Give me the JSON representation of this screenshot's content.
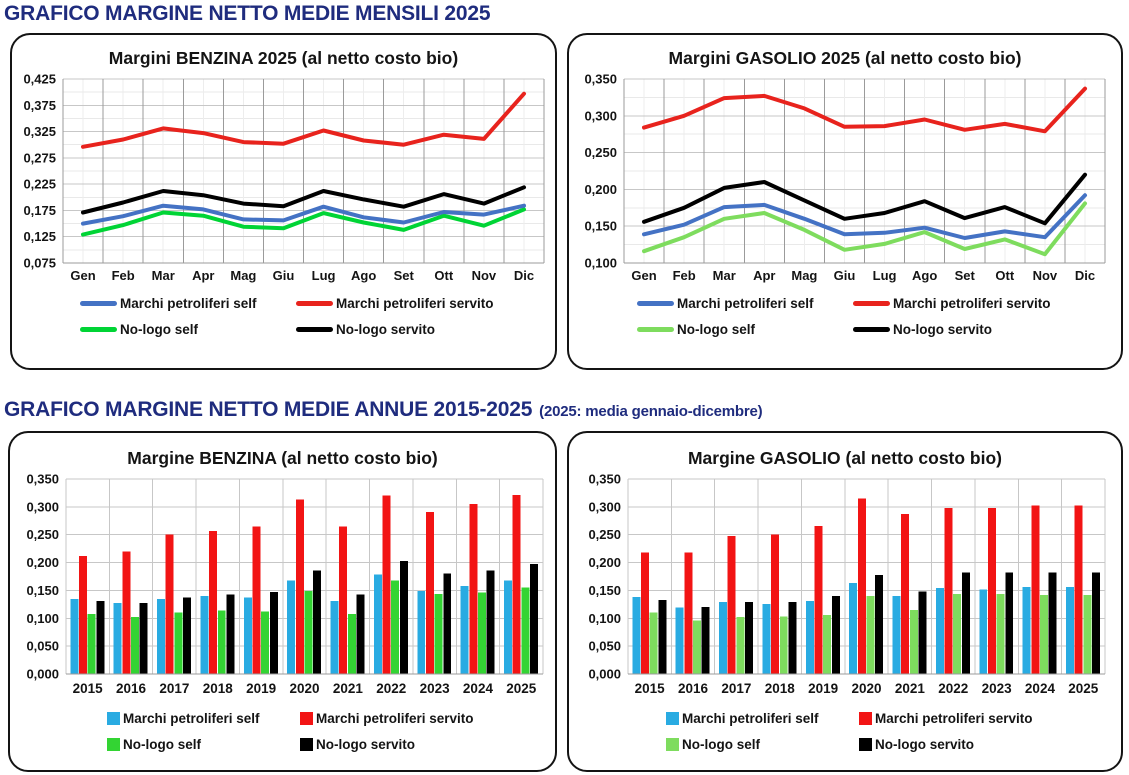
{
  "accent_color": "#1F2C7E",
  "headers": {
    "monthly": "GRAFICO MARGINE NETTO MEDIE MENSILI 2025",
    "annual": "GRAFICO MARGINE NETTO MEDIE ANNUE 2015-2025",
    "annual_note": "(2025: media gennaio-dicembre)"
  },
  "legend_labels": [
    "Marchi petroliferi self",
    "Marchi petroliferi servito",
    "No-logo self",
    "No-logo servito"
  ],
  "chart_data": [
    {
      "type": "line",
      "title": "Margini BENZINA 2025 (al netto costo bio)",
      "categories": [
        "Gen",
        "Feb",
        "Mar",
        "Apr",
        "Mag",
        "Giu",
        "Lug",
        "Ago",
        "Set",
        "Ott",
        "Nov",
        "Dic"
      ],
      "xlabel": "",
      "ylabel": "",
      "ylim": [
        0.075,
        0.425
      ],
      "ytick_step": 0.05,
      "grid": true,
      "legend_position": "bottom",
      "series": [
        {
          "name": "Marchi petroliferi self",
          "color": "#4472C4",
          "values": [
            0.15,
            0.164,
            0.184,
            0.177,
            0.158,
            0.156,
            0.182,
            0.162,
            0.152,
            0.172,
            0.167,
            0.184
          ]
        },
        {
          "name": "Marchi petroliferi servito",
          "color": "#E8231D",
          "values": [
            0.296,
            0.31,
            0.331,
            0.322,
            0.305,
            0.302,
            0.327,
            0.308,
            0.3,
            0.319,
            0.311,
            0.397
          ]
        },
        {
          "name": "No-logo self",
          "color": "#00D435",
          "values": [
            0.129,
            0.147,
            0.171,
            0.165,
            0.144,
            0.141,
            0.17,
            0.152,
            0.138,
            0.165,
            0.146,
            0.177
          ]
        },
        {
          "name": "No-logo servito",
          "color": "#000000",
          "values": [
            0.171,
            0.19,
            0.212,
            0.204,
            0.188,
            0.183,
            0.212,
            0.196,
            0.182,
            0.206,
            0.188,
            0.219
          ]
        }
      ]
    },
    {
      "type": "line",
      "title": "Margini GASOLIO 2025 (al netto costo bio)",
      "categories": [
        "Gen",
        "Feb",
        "Mar",
        "Apr",
        "Mag",
        "Giu",
        "Lug",
        "Ago",
        "Set",
        "Ott",
        "Nov",
        "Dic"
      ],
      "xlabel": "",
      "ylabel": "",
      "ylim": [
        0.1,
        0.35
      ],
      "ytick_step": 0.05,
      "grid": true,
      "legend_position": "bottom",
      "series": [
        {
          "name": "Marchi petroliferi self",
          "color": "#4472C4",
          "values": [
            0.139,
            0.152,
            0.176,
            0.179,
            0.16,
            0.139,
            0.141,
            0.148,
            0.134,
            0.143,
            0.135,
            0.192
          ]
        },
        {
          "name": "Marchi petroliferi servito",
          "color": "#E8231D",
          "values": [
            0.284,
            0.3,
            0.324,
            0.327,
            0.31,
            0.285,
            0.286,
            0.295,
            0.281,
            0.289,
            0.279,
            0.337
          ]
        },
        {
          "name": "No-logo self",
          "color": "#7EDC5E",
          "values": [
            0.116,
            0.135,
            0.16,
            0.168,
            0.145,
            0.118,
            0.126,
            0.142,
            0.119,
            0.132,
            0.112,
            0.181
          ]
        },
        {
          "name": "No-logo servito",
          "color": "#000000",
          "values": [
            0.156,
            0.175,
            0.202,
            0.21,
            0.185,
            0.16,
            0.168,
            0.184,
            0.161,
            0.176,
            0.154,
            0.22
          ]
        }
      ]
    },
    {
      "type": "bar",
      "title": "Margine BENZINA (al netto costo bio)",
      "categories": [
        "2015",
        "2016",
        "2017",
        "2018",
        "2019",
        "2020",
        "2021",
        "2022",
        "2023",
        "2024",
        "2025"
      ],
      "xlabel": "",
      "ylabel": "",
      "ylim": [
        0.0,
        0.35
      ],
      "ytick_step": 0.05,
      "grid": true,
      "legend_position": "bottom",
      "series": [
        {
          "name": "Marchi petroliferi self",
          "color": "#29ABE2",
          "values": [
            0.135,
            0.127,
            0.135,
            0.14,
            0.137,
            0.168,
            0.131,
            0.179,
            0.149,
            0.158,
            0.168
          ]
        },
        {
          "name": "Marchi petroliferi servito",
          "color": "#F21414",
          "values": [
            0.212,
            0.22,
            0.25,
            0.257,
            0.265,
            0.313,
            0.265,
            0.32,
            0.291,
            0.305,
            0.321
          ]
        },
        {
          "name": "No-logo self",
          "color": "#33D433",
          "values": [
            0.108,
            0.102,
            0.11,
            0.114,
            0.112,
            0.149,
            0.108,
            0.168,
            0.144,
            0.146,
            0.155
          ]
        },
        {
          "name": "No-logo servito",
          "color": "#000000",
          "values": [
            0.131,
            0.127,
            0.137,
            0.143,
            0.147,
            0.186,
            0.143,
            0.203,
            0.18,
            0.186,
            0.197
          ]
        }
      ]
    },
    {
      "type": "bar",
      "title": "Margine GASOLIO (al netto costo bio)",
      "categories": [
        "2015",
        "2016",
        "2017",
        "2018",
        "2019",
        "2020",
        "2021",
        "2022",
        "2023",
        "2024",
        "2025"
      ],
      "xlabel": "",
      "ylabel": "",
      "ylim": [
        0.0,
        0.35
      ],
      "ytick_step": 0.05,
      "grid": true,
      "legend_position": "bottom",
      "series": [
        {
          "name": "Marchi petroliferi self",
          "color": "#29ABE2",
          "values": [
            0.138,
            0.119,
            0.129,
            0.126,
            0.131,
            0.163,
            0.14,
            0.154,
            0.152,
            0.156,
            0.156
          ]
        },
        {
          "name": "Marchi petroliferi servito",
          "color": "#F21414",
          "values": [
            0.218,
            0.218,
            0.248,
            0.25,
            0.266,
            0.315,
            0.287,
            0.298,
            0.298,
            0.302,
            0.302
          ]
        },
        {
          "name": "No-logo self",
          "color": "#7EDC5E",
          "values": [
            0.11,
            0.096,
            0.102,
            0.103,
            0.106,
            0.14,
            0.115,
            0.144,
            0.144,
            0.142,
            0.142
          ]
        },
        {
          "name": "No-logo servito",
          "color": "#000000",
          "values": [
            0.133,
            0.12,
            0.129,
            0.129,
            0.14,
            0.178,
            0.148,
            0.182,
            0.182,
            0.182,
            0.182
          ]
        }
      ]
    }
  ]
}
